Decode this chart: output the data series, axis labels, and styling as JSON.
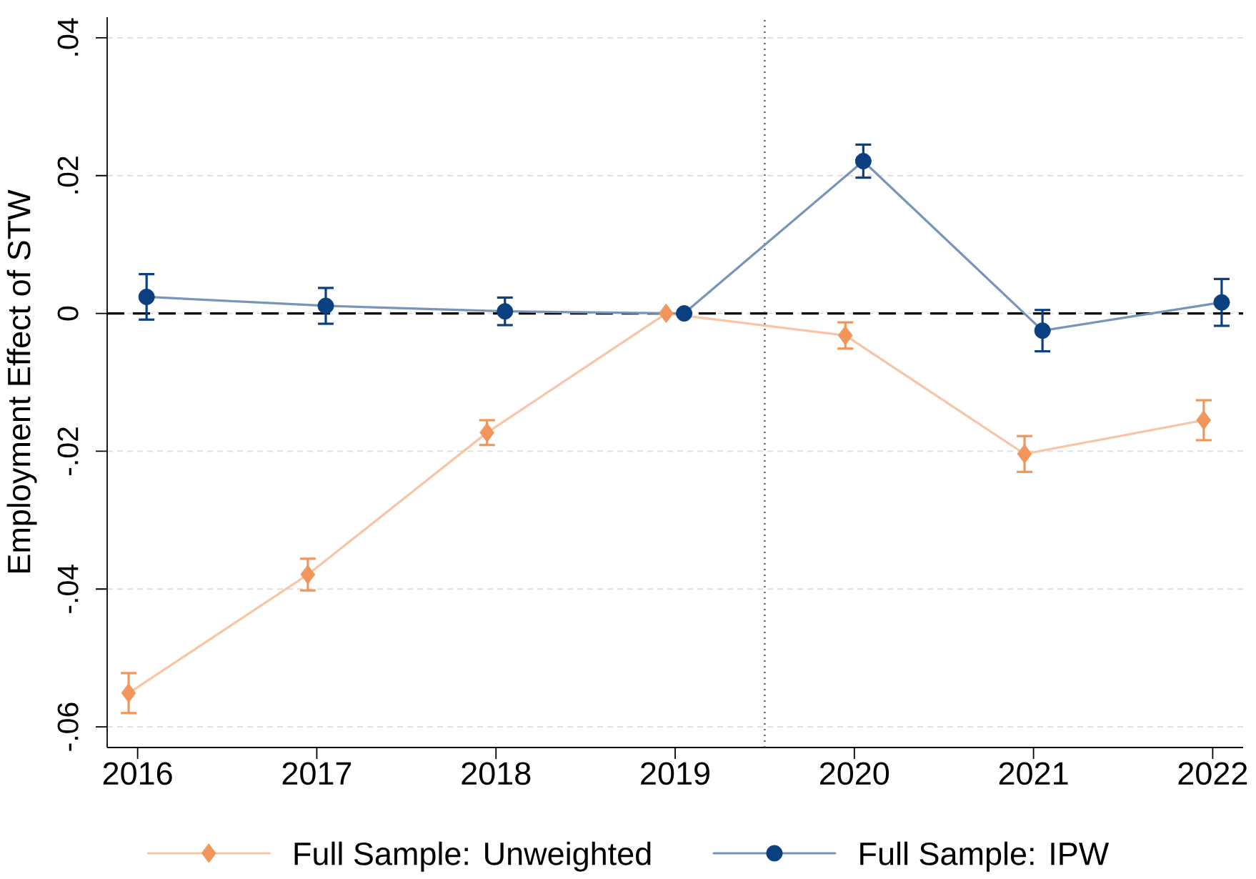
{
  "chart_data": {
    "type": "line",
    "ylabel": "Employment Effect of STW",
    "xlim": [
      2015.83,
      2022.17
    ],
    "xticks": [
      2016,
      2017,
      2018,
      2019,
      2020,
      2021,
      2022
    ],
    "ylim": [
      -0.063,
      0.043
    ],
    "yticks": [
      {
        "value": -0.06,
        "label": "-.06"
      },
      {
        "value": -0.04,
        "label": "-.04"
      },
      {
        "value": -0.02,
        "label": "-.02"
      },
      0,
      {
        "value": 0.02,
        "label": ".02"
      },
      {
        "value": 0.04,
        "label": ".04"
      }
    ],
    "grid": "y",
    "legend": "bottom",
    "ref_lines": [
      {
        "axis": "y",
        "value": 0,
        "line_style": "dashed",
        "color": "#000000"
      },
      {
        "axis": "x",
        "value": 2019.5,
        "line_style": "dotted",
        "color": "#555555"
      }
    ],
    "series": [
      {
        "name": "Full Sample: Unweighted",
        "color": "#f0965a",
        "marker": "diamond",
        "x": [
          2015.95,
          2016.95,
          2017.95,
          2018.95,
          2019.95,
          2020.95,
          2021.95
        ],
        "values": [
          -0.0551,
          -0.0379,
          -0.0173,
          0,
          -0.0032,
          -0.0204,
          -0.0155
        ],
        "errors": [
          0.0029,
          0.0023,
          0.0018,
          null,
          0.0019,
          0.0026,
          0.0029
        ]
      },
      {
        "name": "Full Sample: IPW",
        "color": "#0a3f80",
        "marker": "circle",
        "x": [
          2016.05,
          2017.05,
          2018.05,
          2019.05,
          2020.05,
          2021.05,
          2022.05
        ],
        "values": [
          0.0024,
          0.0011,
          0.0003,
          0,
          0.0221,
          -0.0025,
          0.0016
        ],
        "errors": [
          0.0033,
          0.0026,
          0.002,
          null,
          0.0024,
          0.003,
          0.0034
        ]
      }
    ]
  }
}
